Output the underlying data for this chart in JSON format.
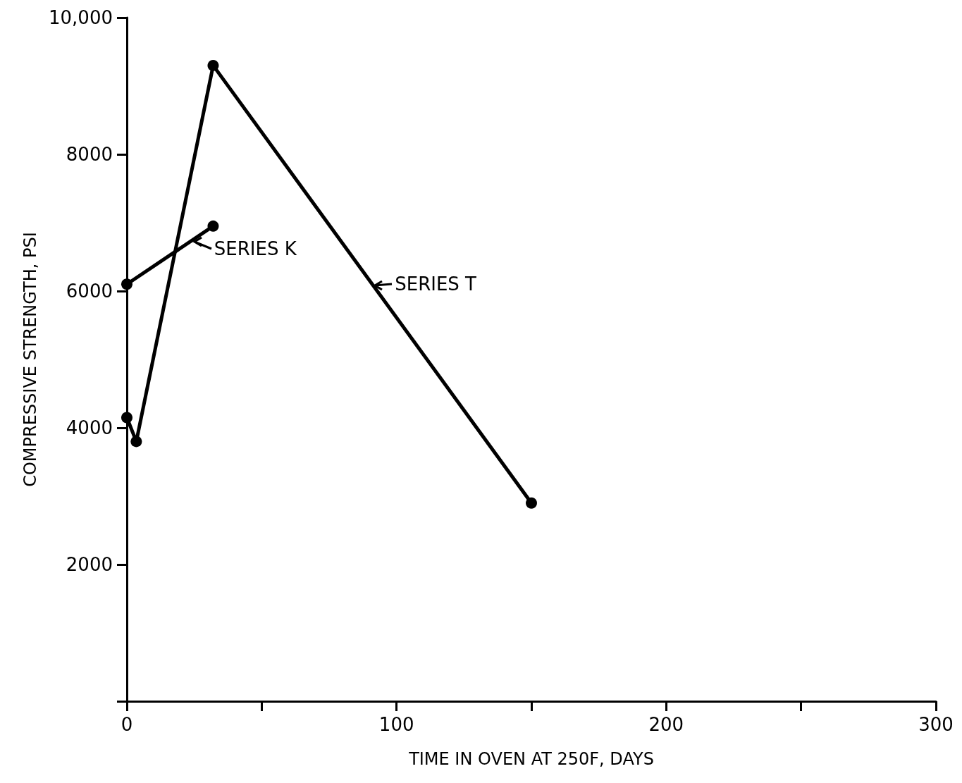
{
  "chart_data": {
    "type": "line",
    "xlabel": "TIME IN OVEN AT 250F, DAYS",
    "ylabel": "COMPRESSIVE STRENGTH, PSI",
    "xlim": [
      0,
      300
    ],
    "ylim": [
      0,
      10000
    ],
    "xticks": [
      0,
      {
        "value": 50,
        "label": null
      },
      100,
      {
        "value": 150,
        "label": null
      },
      200,
      {
        "value": 250,
        "label": null
      },
      300
    ],
    "yticks": [
      {
        "value": 0,
        "label": null
      },
      2000,
      4000,
      6000,
      8000,
      {
        "value": 10000,
        "label": "10,000"
      }
    ],
    "series": [
      {
        "name": "SERIES K",
        "color": "#000000",
        "x": [
          0,
          32
        ],
        "values": [
          6100,
          6950
        ]
      },
      {
        "name": "SERIES T",
        "color": "#000000",
        "x": [
          0,
          3.5,
          32,
          150
        ],
        "values": [
          4150,
          3800,
          9300,
          2900
        ]
      }
    ],
    "grid": false,
    "legend": "left",
    "marker": "circle",
    "line_style": "solid"
  }
}
